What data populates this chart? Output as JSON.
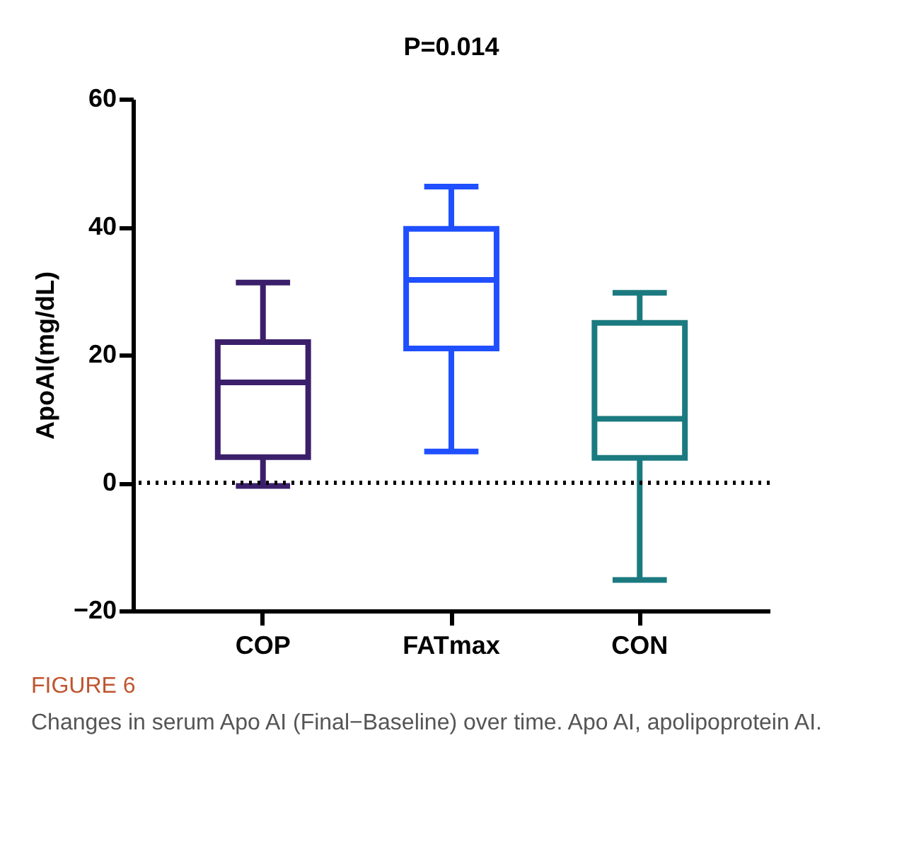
{
  "chart_data": {
    "type": "box",
    "title": "P=0.014",
    "ylabel": "ApoAI(mg/dL)",
    "categories": [
      "COP",
      "FATmax",
      "CON"
    ],
    "boxes": [
      {
        "low": -0.5,
        "q1": 4,
        "median": 15.7,
        "q3": 22,
        "high": 31.3
      },
      {
        "low": 4.9,
        "q1": 21,
        "median": 31.7,
        "q3": 39.7,
        "high": 46.3
      },
      {
        "low": -15.2,
        "q1": 3.9,
        "median": 10,
        "q3": 25,
        "high": 29.7
      }
    ],
    "colors": [
      "#3b1f6b",
      "#1f4fff",
      "#1b7a80"
    ],
    "ylim": [
      -20,
      60
    ],
    "yticks": [
      -20,
      0,
      20,
      40,
      60
    ],
    "grid": false,
    "ref_lines": [
      {
        "axis": "y",
        "value": 0,
        "line_style": "dotted",
        "color": "#000000"
      }
    ],
    "annotations": [
      "FIGURE 6",
      "Changes in serum Apo AI (Final−Baseline) over time. Apo AI, apolipoprotein AI."
    ]
  }
}
